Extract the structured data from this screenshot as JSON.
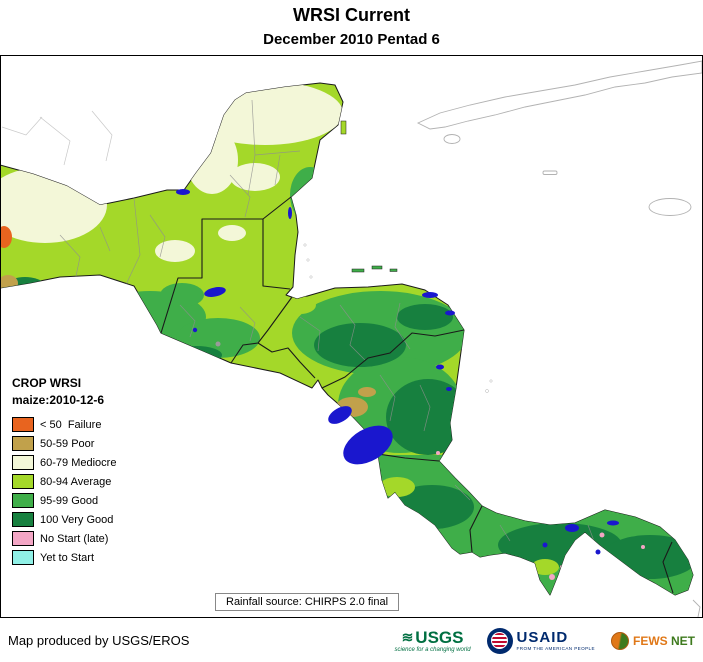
{
  "header": {
    "title": "WRSI Current",
    "subtitle": "December 2010 Pentad 6"
  },
  "legend": {
    "title": "CROP WRSI",
    "subtitle": "maize:2010-12-6",
    "items": [
      {
        "label": "< 50  Failure",
        "color": "#E8641F"
      },
      {
        "label": "50-59 Poor",
        "color": "#C1A14B"
      },
      {
        "label": "60-79 Mediocre",
        "color": "#F3F7D8"
      },
      {
        "label": "80-94 Average",
        "color": "#A4D829"
      },
      {
        "label": "95-99 Good",
        "color": "#3FAE49"
      },
      {
        "label": "100 Very Good",
        "color": "#17803F"
      },
      {
        "label": "No Start (late)",
        "color": "#F3A6C5"
      },
      {
        "label": "Yet to Start",
        "color": "#90F0E6"
      }
    ]
  },
  "map": {
    "source_note": "Rainfall source: CHIRPS 2.0 final",
    "water_color": "#1A17CE"
  },
  "footer": {
    "credit": "Map produced by USGS/EROS",
    "usgs": {
      "wave_glyph": "≋",
      "name": "USGS",
      "tagline": "science for a changing world"
    },
    "usaid": {
      "name": "USAID",
      "tagline": "FROM THE AMERICAN PEOPLE"
    },
    "fewsnet": {
      "name_fews": "FEWS",
      "name_net": "NET"
    }
  }
}
